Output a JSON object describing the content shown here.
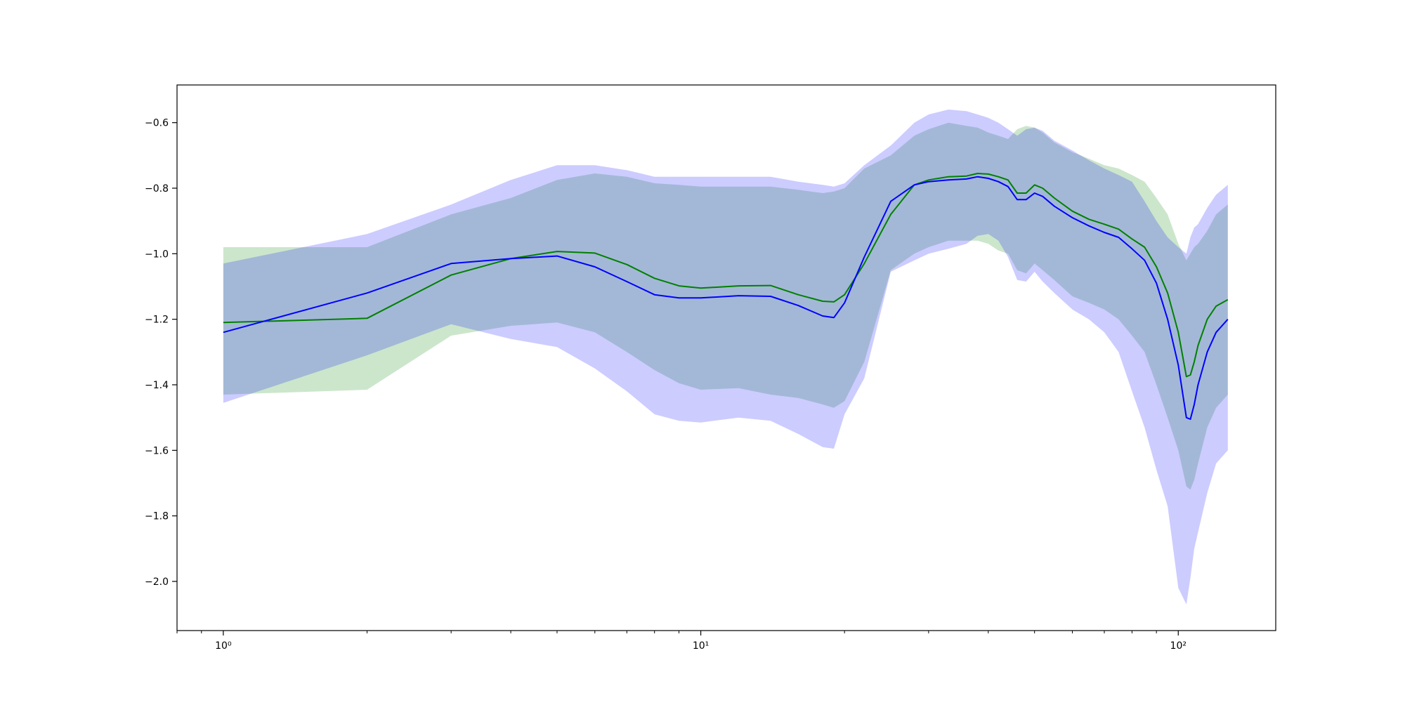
{
  "chart_data": {
    "type": "line",
    "title": "",
    "xlabel": "",
    "ylabel": "",
    "xscale": "log",
    "xlim": [
      0.8,
      160
    ],
    "ylim": [
      -2.15,
      -0.485
    ],
    "grid": false,
    "legend": "none",
    "x_ticks": [
      {
        "value": 1,
        "label": "10⁰"
      },
      {
        "value": 10,
        "label": "10¹"
      },
      {
        "value": 100,
        "label": "10²"
      }
    ],
    "y_ticks": [
      {
        "value": -0.6,
        "label": "−0.6"
      },
      {
        "value": -0.8,
        "label": "−0.8"
      },
      {
        "value": -1.0,
        "label": "−1.0"
      },
      {
        "value": -1.2,
        "label": "−1.2"
      },
      {
        "value": -1.4,
        "label": "−1.4"
      },
      {
        "value": -1.6,
        "label": "−1.6"
      },
      {
        "value": -1.8,
        "label": "−1.8"
      },
      {
        "value": -2.0,
        "label": "−2.0"
      }
    ],
    "series": [
      {
        "color": "#008000",
        "band_color": "#008000",
        "band_opacity": 0.2,
        "x": [
          1,
          2,
          3,
          4,
          5,
          6,
          7,
          8,
          9,
          10,
          12,
          14,
          16,
          18,
          19,
          20,
          22,
          25,
          28,
          30,
          33,
          36,
          38,
          40,
          42,
          44,
          46,
          48,
          50,
          52,
          55,
          60,
          65,
          70,
          75,
          80,
          85,
          90,
          95,
          100,
          104,
          106,
          108,
          110,
          115,
          120,
          127
        ],
        "mean": [
          -1.21,
          -1.197,
          -1.065,
          -1.015,
          -0.993,
          -0.998,
          -1.033,
          -1.075,
          -1.098,
          -1.105,
          -1.098,
          -1.097,
          -1.125,
          -1.145,
          -1.147,
          -1.125,
          -1.03,
          -0.88,
          -0.79,
          -0.775,
          -0.765,
          -0.763,
          -0.755,
          -0.757,
          -0.765,
          -0.775,
          -0.815,
          -0.815,
          -0.79,
          -0.8,
          -0.83,
          -0.87,
          -0.895,
          -0.91,
          -0.925,
          -0.955,
          -0.98,
          -1.04,
          -1.12,
          -1.24,
          -1.375,
          -1.37,
          -1.33,
          -1.28,
          -1.2,
          -1.16,
          -1.14
        ],
        "lower": [
          -1.43,
          -1.415,
          -1.25,
          -1.22,
          -1.21,
          -1.24,
          -1.3,
          -1.355,
          -1.395,
          -1.415,
          -1.41,
          -1.43,
          -1.44,
          -1.46,
          -1.47,
          -1.45,
          -1.33,
          -1.05,
          -1.0,
          -0.98,
          -0.96,
          -0.96,
          -0.96,
          -0.97,
          -0.99,
          -1.0,
          -1.05,
          -1.06,
          -1.03,
          -1.05,
          -1.08,
          -1.13,
          -1.15,
          -1.17,
          -1.2,
          -1.25,
          -1.3,
          -1.4,
          -1.5,
          -1.6,
          -1.71,
          -1.72,
          -1.69,
          -1.64,
          -1.53,
          -1.47,
          -1.43
        ],
        "upper": [
          -0.98,
          -0.98,
          -0.88,
          -0.83,
          -0.775,
          -0.755,
          -0.765,
          -0.785,
          -0.79,
          -0.795,
          -0.795,
          -0.795,
          -0.805,
          -0.815,
          -0.81,
          -0.8,
          -0.74,
          -0.7,
          -0.64,
          -0.62,
          -0.6,
          -0.61,
          -0.615,
          -0.63,
          -0.64,
          -0.65,
          -0.62,
          -0.61,
          -0.615,
          -0.63,
          -0.66,
          -0.69,
          -0.71,
          -0.73,
          -0.74,
          -0.76,
          -0.78,
          -0.83,
          -0.88,
          -0.97,
          -1.02,
          -1.0,
          -0.98,
          -0.97,
          -0.93,
          -0.88,
          -0.85
        ]
      },
      {
        "color": "#0000ff",
        "band_color": "#0000ff",
        "band_opacity": 0.2,
        "x": [
          1,
          2,
          3,
          4,
          5,
          6,
          7,
          8,
          9,
          10,
          12,
          14,
          16,
          18,
          19,
          20,
          22,
          25,
          28,
          30,
          33,
          36,
          38,
          40,
          42,
          44,
          46,
          48,
          50,
          52,
          55,
          60,
          65,
          70,
          75,
          80,
          85,
          90,
          95,
          100,
          104,
          106,
          108,
          110,
          115,
          120,
          127
        ],
        "mean": [
          -1.24,
          -1.12,
          -1.03,
          -1.015,
          -1.007,
          -1.04,
          -1.085,
          -1.125,
          -1.135,
          -1.135,
          -1.128,
          -1.13,
          -1.158,
          -1.19,
          -1.195,
          -1.15,
          -1.01,
          -0.84,
          -0.79,
          -0.78,
          -0.775,
          -0.772,
          -0.765,
          -0.77,
          -0.78,
          -0.795,
          -0.835,
          -0.835,
          -0.815,
          -0.825,
          -0.855,
          -0.89,
          -0.915,
          -0.935,
          -0.95,
          -0.985,
          -1.02,
          -1.09,
          -1.2,
          -1.34,
          -1.5,
          -1.505,
          -1.46,
          -1.4,
          -1.3,
          -1.24,
          -1.2
        ],
        "lower": [
          -1.455,
          -1.31,
          -1.215,
          -1.26,
          -1.285,
          -1.35,
          -1.42,
          -1.49,
          -1.51,
          -1.515,
          -1.5,
          -1.51,
          -1.55,
          -1.59,
          -1.595,
          -1.49,
          -1.38,
          -1.055,
          -1.02,
          -1.0,
          -0.985,
          -0.97,
          -0.945,
          -0.94,
          -0.96,
          -1.01,
          -1.08,
          -1.085,
          -1.055,
          -1.085,
          -1.12,
          -1.17,
          -1.2,
          -1.24,
          -1.3,
          -1.42,
          -1.53,
          -1.66,
          -1.77,
          -2.02,
          -2.07,
          -1.99,
          -1.9,
          -1.85,
          -1.73,
          -1.64,
          -1.6
        ],
        "upper": [
          -1.03,
          -0.94,
          -0.85,
          -0.775,
          -0.73,
          -0.73,
          -0.745,
          -0.765,
          -0.765,
          -0.765,
          -0.765,
          -0.765,
          -0.78,
          -0.79,
          -0.795,
          -0.785,
          -0.73,
          -0.67,
          -0.6,
          -0.575,
          -0.56,
          -0.565,
          -0.575,
          -0.585,
          -0.6,
          -0.62,
          -0.64,
          -0.62,
          -0.615,
          -0.625,
          -0.655,
          -0.685,
          -0.715,
          -0.74,
          -0.76,
          -0.78,
          -0.84,
          -0.9,
          -0.95,
          -0.98,
          -1.0,
          -0.95,
          -0.92,
          -0.91,
          -0.86,
          -0.82,
          -0.79
        ]
      }
    ]
  }
}
